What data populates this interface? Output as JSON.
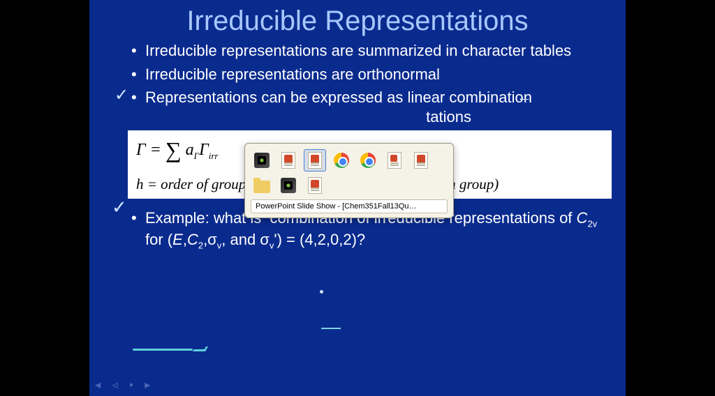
{
  "slide": {
    "title": "Irreducible Representations",
    "bullets": [
      "Irreducible representations are summarized in character tables",
      "Irreducible representations are orthonormal",
      "Representations can be expressed as linear combination",
      "tations"
    ],
    "formula": {
      "line1_html": "Γ = <span class='sigma'>∑</span> <i>a</i><span class='sub'>Γ</span>Γ<span class='sub'>irr</span>",
      "line2": "h = order of group (number of symmetry operations in group)"
    },
    "example_html": "Example: what is &nbsp;combination of irreducible representations of <i>C</i><span class='sub'>2v</span> for (<i>E</i>,<i>C</i><span class='sub'>2</span>,σ<span class='sub'>v</span>, and σ<span class='sub'>v</span>') = (4,2,0,2)?"
  },
  "switcher": {
    "caption": "PowerPoint Slide Show - [Chem351Fall13Qu…",
    "selected_index": 2
  },
  "colors": {
    "slide_bg": "#0a2b8e",
    "title": "#a8c8ff",
    "annotation": "#7fd4e0"
  }
}
